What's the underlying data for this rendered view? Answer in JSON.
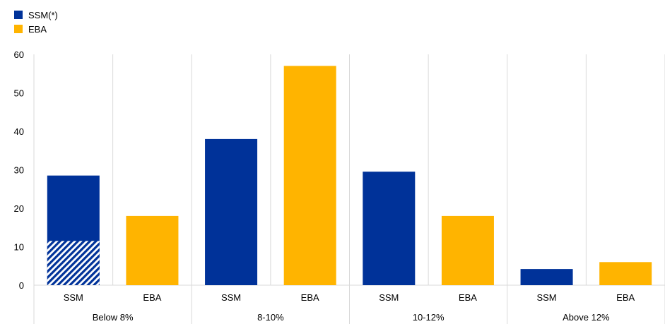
{
  "legend": [
    {
      "label": "SSM(*)",
      "color": "#003299"
    },
    {
      "label": "EBA",
      "color": "#FFB400"
    }
  ],
  "chart_data": {
    "type": "bar",
    "groups": [
      "Below 8%",
      "8-10%",
      "10-12%",
      "Above 12%"
    ],
    "sub_categories": [
      "SSM",
      "EBA"
    ],
    "series": [
      {
        "name": "SSM(*)",
        "color": "#003299",
        "values": [
          28.5,
          38,
          29.5,
          4.2
        ]
      },
      {
        "name": "EBA",
        "color": "#FFB400",
        "values": [
          18,
          57,
          18,
          6
        ]
      }
    ],
    "ssm_hatched_portion": [
      11.5,
      0,
      0,
      0
    ],
    "hatch_color": "#003299",
    "ylim": [
      0,
      60
    ],
    "yticks": [
      0,
      10,
      20,
      30,
      40,
      50,
      60
    ],
    "grid": "vertical",
    "legend_position": "top-left"
  }
}
